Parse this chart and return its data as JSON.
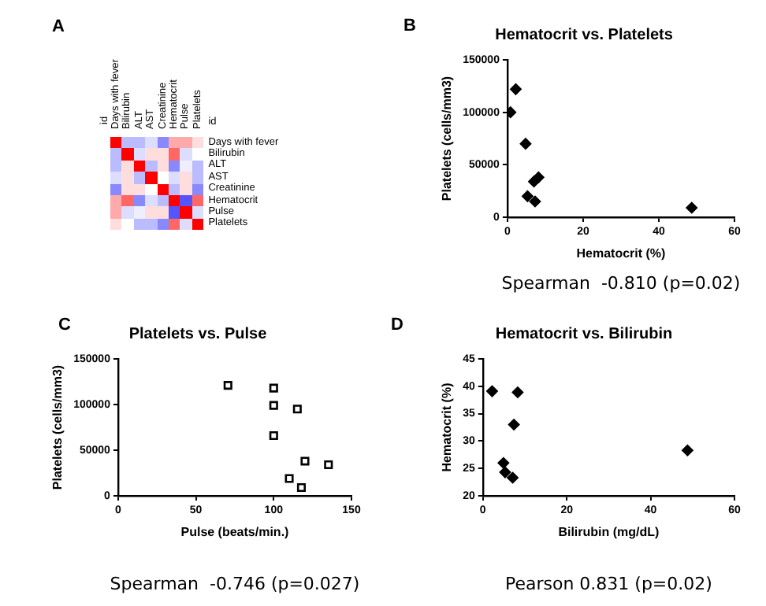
{
  "chart_data": [
    {
      "type": "other",
      "annotations": [
        "A"
      ],
      "categories": [
        "id",
        "Days with fever",
        "Bilirubin",
        "ALT",
        "AST",
        "Creatinine",
        "Hematocrit",
        "Pulse",
        "Platelets"
      ],
      "y_categories": [
        "id",
        "Days with fever",
        "Bilirubin",
        "ALT",
        "AST",
        "Creatinine",
        "Hematocrit",
        "Pulse",
        "Platelets"
      ]
    },
    {
      "type": "scatter",
      "title": "Hematocrit vs. Platelets",
      "xlabel": "Hematocrit (%)",
      "ylabel": "Platelets (cells/mm3)",
      "annotations": [
        "B",
        "Spearman  -0.810 (p=0.02)"
      ],
      "x": [
        0.8,
        2.2,
        4.8,
        5.3,
        7.0,
        8.2,
        7.3,
        48.7
      ],
      "series": [
        {
          "color": "#000000",
          "values": [
            100000,
            122000,
            70000,
            20000,
            34000,
            38000,
            15000,
            9000
          ]
        }
      ],
      "xlim": [
        0,
        60
      ],
      "xticks": [
        0,
        20,
        40,
        60
      ],
      "ylim": [
        0,
        150000
      ],
      "yticks": [
        0,
        50000,
        100000,
        150000
      ],
      "grid": false,
      "legend": false,
      "marker": "diamond"
    },
    {
      "type": "scatter",
      "title": "Platelets vs. Pulse",
      "xlabel": "Pulse (beats/min.)",
      "ylabel": "Platelets (cells/mm3)",
      "annotations": [
        "C",
        "Spearman  -0.746 (p=0.027)"
      ],
      "x": [
        70.6,
        100,
        100,
        115.2,
        100,
        120.1,
        135.2,
        110,
        117.8
      ],
      "series": [
        {
          "color": "#000000",
          "values": [
            121000,
            118000,
            99000,
            95000,
            66000,
            38000,
            34000,
            19000,
            9000
          ]
        }
      ],
      "xlim": [
        0,
        150
      ],
      "xticks": [
        0,
        50,
        100,
        150
      ],
      "ylim": [
        0,
        150000
      ],
      "yticks": [
        0,
        50000,
        100000,
        150000
      ],
      "grid": false,
      "legend": false,
      "marker": "square"
    },
    {
      "type": "scatter",
      "title": "Hematocrit vs. Bilirubin",
      "xlabel": "Bilirubin (mg/dL)",
      "ylabel": "Hematocrit (%)",
      "annotations": [
        "D",
        "Pearson 0.831 (p=0.02)"
      ],
      "x": [
        2.2,
        8.3,
        7.4,
        4.9,
        5.3,
        7.1,
        48.8
      ],
      "series": [
        {
          "color": "#000000",
          "values": [
            39.1,
            38.9,
            33.0,
            26.0,
            24.3,
            23.3,
            28.3
          ]
        }
      ],
      "xlim": [
        0,
        60
      ],
      "xticks": [
        0,
        20,
        40,
        60
      ],
      "ylim": [
        20,
        45
      ],
      "yticks": [
        20,
        25,
        30,
        35,
        40,
        45
      ],
      "grid": false,
      "legend": false,
      "marker": "diamond"
    }
  ]
}
